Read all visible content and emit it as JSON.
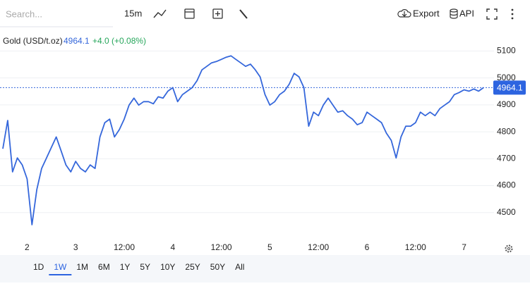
{
  "toolbar": {
    "search_placeholder": "Search...",
    "interval": "15m",
    "export": "Export",
    "api": "API"
  },
  "legend": {
    "name": "Gold (USD/t.oz)",
    "change": "+4.0 (+0.08%)"
  },
  "ranges": [
    "1D",
    "1W",
    "1M",
    "6M",
    "1Y",
    "5Y",
    "10Y",
    "25Y",
    "50Y",
    "All"
  ],
  "active_range": "1W",
  "chart_data": {
    "type": "line",
    "color": "#3567db",
    "grid": true,
    "last_value": 4964.1,
    "ylim": [
      4400,
      5190
    ],
    "yticks": [
      4500,
      4600,
      4700,
      4800,
      4900,
      5000,
      5100
    ],
    "categories": [
      null,
      null,
      null,
      null,
      null,
      "2",
      null,
      null,
      null,
      null,
      null,
      null,
      null,
      null,
      null,
      "3",
      null,
      null,
      null,
      null,
      null,
      null,
      null,
      null,
      null,
      "12:00",
      null,
      null,
      null,
      null,
      null,
      null,
      null,
      null,
      null,
      "4",
      null,
      null,
      null,
      null,
      null,
      null,
      null,
      null,
      null,
      "12:00",
      null,
      null,
      null,
      null,
      null,
      null,
      null,
      null,
      null,
      "5",
      null,
      null,
      null,
      null,
      null,
      null,
      null,
      null,
      null,
      "12:00",
      null,
      null,
      null,
      null,
      null,
      null,
      null,
      null,
      null,
      "6",
      null,
      null,
      null,
      null,
      null,
      null,
      null,
      null,
      null,
      "12:00",
      null,
      null,
      null,
      null,
      null,
      null,
      null,
      null,
      null,
      "7",
      null,
      null,
      null,
      null
    ],
    "values": [
      4737,
      4842,
      4651,
      4703,
      4677,
      4625,
      4455,
      4586,
      4664,
      4703,
      4742,
      4781,
      4729,
      4677,
      4651,
      4690,
      4664,
      4651,
      4677,
      4664,
      4781,
      4834,
      4847,
      4781,
      4808,
      4847,
      4899,
      4925,
      4899,
      4912,
      4912,
      4904,
      4930,
      4925,
      4951,
      4964,
      4912,
      4938,
      4951,
      4964,
      4990,
      5030,
      5043,
      5056,
      5061,
      5069,
      5077,
      5082,
      5069,
      5056,
      5043,
      5051,
      5030,
      5004,
      4938,
      4899,
      4912,
      4938,
      4951,
      4977,
      5017,
      5004,
      4964,
      4821,
      4873,
      4860,
      4899,
      4925,
      4899,
      4873,
      4878,
      4860,
      4847,
      4826,
      4834,
      4873,
      4860,
      4847,
      4834,
      4795,
      4768,
      4703,
      4781,
      4821,
      4821,
      4834,
      4873,
      4860,
      4873,
      4860,
      4886,
      4899,
      4912,
      4938,
      4946,
      4956,
      4951,
      4959,
      4951,
      4964.1
    ]
  }
}
